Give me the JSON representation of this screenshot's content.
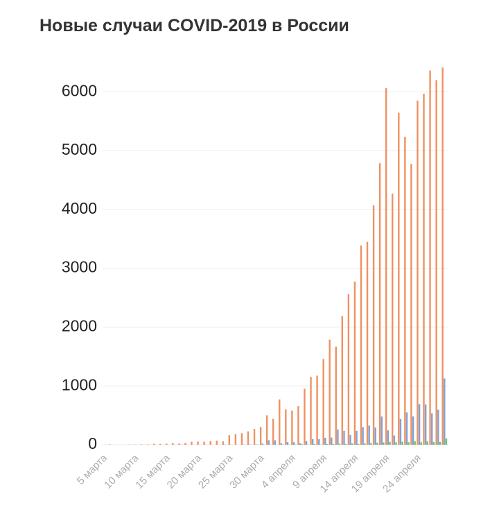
{
  "chart_data": {
    "type": "bar",
    "title": "Новые случаи COVID-2019 в России",
    "categories": [
      "5 марта",
      null,
      null,
      null,
      null,
      "10 марта",
      null,
      null,
      null,
      null,
      "15 марта",
      null,
      null,
      null,
      null,
      "20 марта",
      null,
      null,
      null,
      null,
      "25 марта",
      null,
      null,
      null,
      null,
      "30 марта",
      null,
      null,
      null,
      null,
      "4 апреля",
      null,
      null,
      null,
      null,
      "9 апреля",
      null,
      null,
      null,
      null,
      "14 апреля",
      null,
      null,
      null,
      null,
      "19 апреля",
      null,
      null,
      null,
      null,
      "24 апреля",
      null,
      null,
      null,
      null
    ],
    "series": [
      {
        "color": "#ef9161",
        "values": [
          1,
          6,
          0,
          0,
          3,
          3,
          8,
          6,
          17,
          14,
          20,
          30,
          21,
          33,
          52,
          54,
          53,
          61,
          71,
          57,
          163,
          182,
          196,
          228,
          270,
          302,
          501,
          440,
          771,
          601,
          582,
          658,
          954,
          1154,
          1175,
          1459,
          1786,
          1667,
          2186,
          2558,
          2774,
          3388,
          3448,
          4070,
          4785,
          6060,
          4268,
          5642,
          5236,
          4774,
          5849,
          5966,
          6361,
          6198,
          6411
        ]
      },
      {
        "color": "#7fa2d6",
        "values": [
          0,
          0,
          0,
          0,
          0,
          0,
          0,
          0,
          0,
          0,
          0,
          2,
          3,
          1,
          0,
          0,
          1,
          0,
          0,
          3,
          1,
          0,
          3,
          5,
          6,
          21,
          76,
          76,
          24,
          47,
          45,
          27,
          61,
          96,
          93,
          118,
          123,
          260,
          238,
          167,
          237,
          299,
          326,
          293,
          479,
          245,
          157,
          436,
          549,
          480,
          690,
          686,
          534,
          595,
          1126
        ]
      },
      {
        "color": "#6cc46c",
        "values": [
          0,
          0,
          0,
          0,
          0,
          0,
          0,
          0,
          0,
          0,
          0,
          0,
          0,
          0,
          0,
          0,
          0,
          0,
          0,
          0,
          1,
          0,
          1,
          1,
          3,
          1,
          2,
          2,
          4,
          4,
          4,
          9,
          2,
          11,
          3,
          13,
          12,
          18,
          11,
          22,
          13,
          24,
          28,
          36,
          41,
          48,
          42,
          51,
          44,
          57,
          42,
          58,
          47,
          47,
          108
        ]
      }
    ],
    "ylim": [
      0,
      6600
    ],
    "yticks": [
      0,
      1000,
      2000,
      3000,
      4000,
      5000,
      6000
    ],
    "grid": true
  }
}
